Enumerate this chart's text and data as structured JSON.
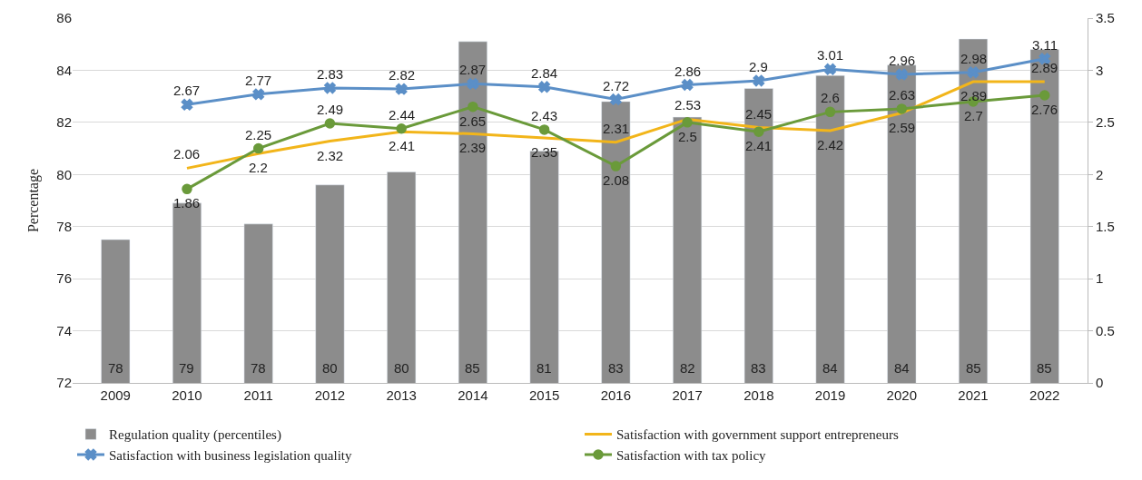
{
  "chart_data": {
    "type": "bar",
    "ylabel": "Percentage",
    "categories": [
      "2009",
      "2010",
      "2011",
      "2012",
      "2013",
      "2014",
      "2015",
      "2016",
      "2017",
      "2018",
      "2019",
      "2020",
      "2021",
      "2022"
    ],
    "ylim": [
      72,
      86
    ],
    "yticks": [
      72,
      74,
      76,
      78,
      80,
      82,
      84,
      86
    ],
    "y2lim": [
      0,
      3.5
    ],
    "y2ticks": [
      0,
      0.5,
      1,
      1.5,
      2,
      2.5,
      3,
      3.5
    ],
    "grid": "y",
    "legend": "bottom",
    "data_labels": true,
    "series": [
      {
        "name": "Regulation quality (percentiles)",
        "color": "#8c8c8c",
        "values": [
          77.5,
          78.9,
          78.1,
          79.6,
          80.1,
          85.1,
          80.9,
          82.8,
          82.2,
          83.3,
          83.8,
          84.2,
          85.2,
          84.8
        ],
        "value_labels": [
          "78",
          "79",
          "78",
          "80",
          "80",
          "85",
          "81",
          "83",
          "82",
          "83",
          "84",
          "84",
          "85",
          "85"
        ]
      },
      {
        "name": "Satisfaction with government support entrepreneurs",
        "type": "line",
        "axis": "y2",
        "color": "#f2b51a",
        "marker": "none",
        "values": [
          null,
          2.06,
          2.2,
          2.32,
          2.41,
          2.39,
          2.35,
          2.31,
          2.53,
          2.45,
          2.42,
          2.59,
          2.89,
          2.89
        ]
      },
      {
        "name": "Satisfaction with business legislation quality",
        "type": "line",
        "axis": "y2",
        "color": "#5b8fc7",
        "marker": "cross",
        "values": [
          null,
          2.67,
          2.77,
          2.83,
          2.82,
          2.87,
          2.84,
          2.72,
          2.86,
          2.9,
          3.01,
          2.96,
          2.98,
          3.11
        ]
      },
      {
        "name": "Satisfaction with tax policy",
        "type": "line",
        "axis": "y2",
        "color": "#6a9a3a",
        "marker": "circle",
        "values": [
          null,
          1.86,
          2.25,
          2.49,
          2.44,
          2.65,
          2.43,
          2.08,
          2.5,
          2.41,
          2.6,
          2.63,
          2.7,
          2.76
        ]
      }
    ]
  }
}
